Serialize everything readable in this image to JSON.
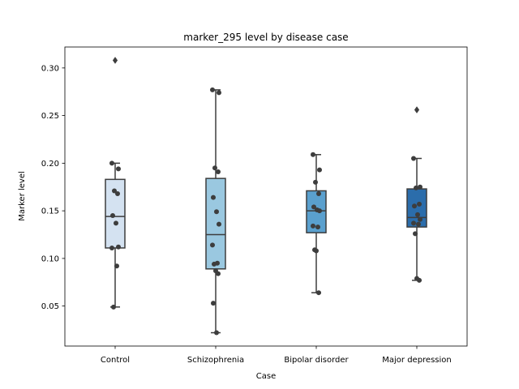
{
  "chart_data": {
    "type": "box",
    "title": "marker_295 level by disease case",
    "xlabel": "Case",
    "ylabel": "Marker level",
    "ylim": [
      0.008,
      0.322
    ],
    "yticks": [
      0.05,
      0.1,
      0.15,
      0.2,
      0.25,
      0.3
    ],
    "ytick_labels": [
      "0.05",
      "0.10",
      "0.15",
      "0.20",
      "0.25",
      "0.30"
    ],
    "grid": false,
    "categories": [
      "Control",
      "Schizophrenia",
      "Bipolar disorder",
      "Major depression"
    ],
    "box_colors": [
      "#d4e2f1",
      "#9ac8e0",
      "#5aa0ce",
      "#2b6dab"
    ],
    "edge_color": "#3d3d3d",
    "point_color": "#3d3d3d",
    "boxes": [
      {
        "category": "Control",
        "whisker_low": 0.049,
        "q1": 0.111,
        "median": 0.144,
        "q3": 0.183,
        "whisker_high": 0.2,
        "outliers": [
          0.308
        ]
      },
      {
        "category": "Schizophrenia",
        "whisker_low": 0.022,
        "q1": 0.089,
        "median": 0.125,
        "q3": 0.184,
        "whisker_high": 0.277,
        "outliers": []
      },
      {
        "category": "Bipolar disorder",
        "whisker_low": 0.064,
        "q1": 0.127,
        "median": 0.15,
        "q3": 0.171,
        "whisker_high": 0.209,
        "outliers": []
      },
      {
        "category": "Major depression",
        "whisker_low": 0.077,
        "q1": 0.133,
        "median": 0.143,
        "q3": 0.173,
        "whisker_high": 0.205,
        "outliers": [
          0.256
        ]
      }
    ],
    "points": [
      {
        "category": "Control",
        "values": [
          0.2,
          0.194,
          0.171,
          0.168,
          0.145,
          0.137,
          0.112,
          0.111,
          0.092,
          0.049
        ]
      },
      {
        "category": "Schizophrenia",
        "values": [
          0.277,
          0.274,
          0.195,
          0.191,
          0.164,
          0.149,
          0.136,
          0.114,
          0.095,
          0.094,
          0.087,
          0.084,
          0.053,
          0.022
        ]
      },
      {
        "category": "Bipolar disorder",
        "values": [
          0.209,
          0.193,
          0.18,
          0.168,
          0.154,
          0.151,
          0.15,
          0.134,
          0.133,
          0.109,
          0.108,
          0.064
        ]
      },
      {
        "category": "Major depression",
        "values": [
          0.205,
          0.175,
          0.174,
          0.157,
          0.155,
          0.146,
          0.141,
          0.137,
          0.136,
          0.126,
          0.079,
          0.077
        ]
      }
    ]
  }
}
